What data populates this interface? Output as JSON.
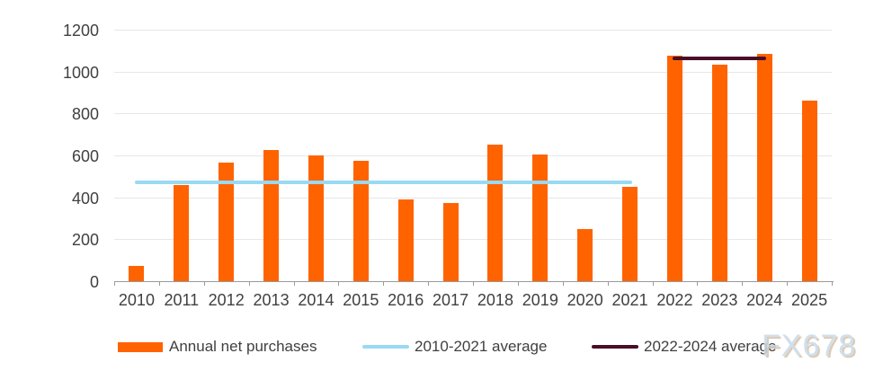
{
  "chart_data": {
    "type": "bar",
    "title": "",
    "categories": [
      "2010",
      "2011",
      "2012",
      "2013",
      "2014",
      "2015",
      "2016",
      "2017",
      "2018",
      "2019",
      "2020",
      "2021",
      "2022",
      "2023",
      "2024",
      "2025"
    ],
    "series": [
      {
        "name": "Annual net purchases",
        "kind": "bar",
        "color": "#FF6300",
        "values": [
          75,
          460,
          565,
          625,
          600,
          575,
          390,
          375,
          650,
          605,
          250,
          450,
          1075,
          1035,
          1085,
          860
        ]
      },
      {
        "name": "2010-2021 average",
        "kind": "line",
        "color": "#99D9F2",
        "value": 470,
        "span": [
          "2010",
          "2021"
        ]
      },
      {
        "name": "2022-2024 average",
        "kind": "line",
        "color": "#4A0E28",
        "value": 1065,
        "span": [
          "2022",
          "2024"
        ]
      }
    ],
    "ylim": [
      0,
      1200
    ],
    "yticks": [
      0,
      200,
      400,
      600,
      800,
      1000,
      1200
    ],
    "grid": "horizontal",
    "legend_position": "bottom",
    "xlabel": "",
    "ylabel": ""
  },
  "axis_style": {
    "grid_color": "#E7E7E7",
    "axis_color": "#9A9A9A",
    "tick_text_color": "#404040"
  },
  "watermark": {
    "text": "FX678",
    "color": "#C7DAEA",
    "shadow_color": "#D9C2A8"
  }
}
